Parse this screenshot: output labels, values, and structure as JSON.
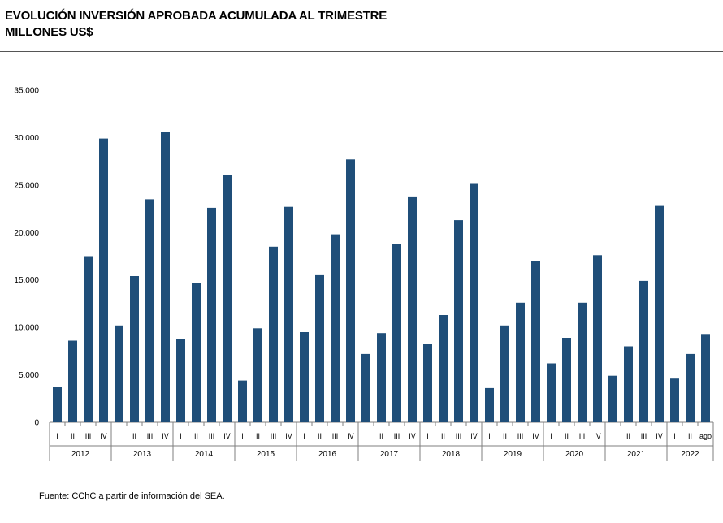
{
  "header": {
    "title_line1": "EVOLUCIÓN INVERSIÓN APROBADA ACUMULADA AL TRIMESTRE",
    "title_line2": "MILLONES US$"
  },
  "footer": {
    "source": "Fuente: CChC a partir de información del SEA."
  },
  "colors": {
    "bar": "#1f4e79",
    "axis": "#7f7f7f"
  },
  "chart_data": {
    "type": "bar",
    "title": "EVOLUCIÓN INVERSIÓN APROBADA ACUMULADA AL TRIMESTRE",
    "ylabel": "MILLONES US$",
    "xlabel": "",
    "ylim": [
      0,
      35000
    ],
    "yticks": [
      0,
      5000,
      10000,
      15000,
      20000,
      25000,
      30000,
      35000
    ],
    "ytick_labels": [
      "0",
      "5.000",
      "10.000",
      "15.000",
      "20.000",
      "25.000",
      "30.000",
      "35.000"
    ],
    "grid": false,
    "years": [
      {
        "year": "2012",
        "quarters": [
          "I",
          "II",
          "III",
          "IV"
        ],
        "values": [
          3700,
          8600,
          17500,
          29900
        ]
      },
      {
        "year": "2013",
        "quarters": [
          "I",
          "II",
          "III",
          "IV"
        ],
        "values": [
          10200,
          15400,
          23500,
          30600
        ]
      },
      {
        "year": "2014",
        "quarters": [
          "I",
          "II",
          "III",
          "IV"
        ],
        "values": [
          8800,
          14700,
          22600,
          26100
        ]
      },
      {
        "year": "2015",
        "quarters": [
          "I",
          "II",
          "III",
          "IV"
        ],
        "values": [
          4400,
          9900,
          18500,
          22700
        ]
      },
      {
        "year": "2016",
        "quarters": [
          "I",
          "II",
          "III",
          "IV"
        ],
        "values": [
          9500,
          15500,
          19800,
          27700
        ]
      },
      {
        "year": "2017",
        "quarters": [
          "I",
          "II",
          "III",
          "IV"
        ],
        "values": [
          7200,
          9400,
          18800,
          23800
        ]
      },
      {
        "year": "2018",
        "quarters": [
          "I",
          "II",
          "III",
          "IV"
        ],
        "values": [
          8300,
          11300,
          21300,
          25200
        ]
      },
      {
        "year": "2019",
        "quarters": [
          "I",
          "II",
          "III",
          "IV"
        ],
        "values": [
          3600,
          10200,
          12600,
          17000
        ]
      },
      {
        "year": "2020",
        "quarters": [
          "I",
          "II",
          "III",
          "IV"
        ],
        "values": [
          6200,
          8900,
          12600,
          17600
        ]
      },
      {
        "year": "2021",
        "quarters": [
          "I",
          "II",
          "III",
          "IV"
        ],
        "values": [
          4900,
          8000,
          14900,
          22800
        ]
      },
      {
        "year": "2022",
        "quarters": [
          "I",
          "II",
          "ago"
        ],
        "values": [
          4600,
          7200,
          9300
        ]
      }
    ]
  }
}
